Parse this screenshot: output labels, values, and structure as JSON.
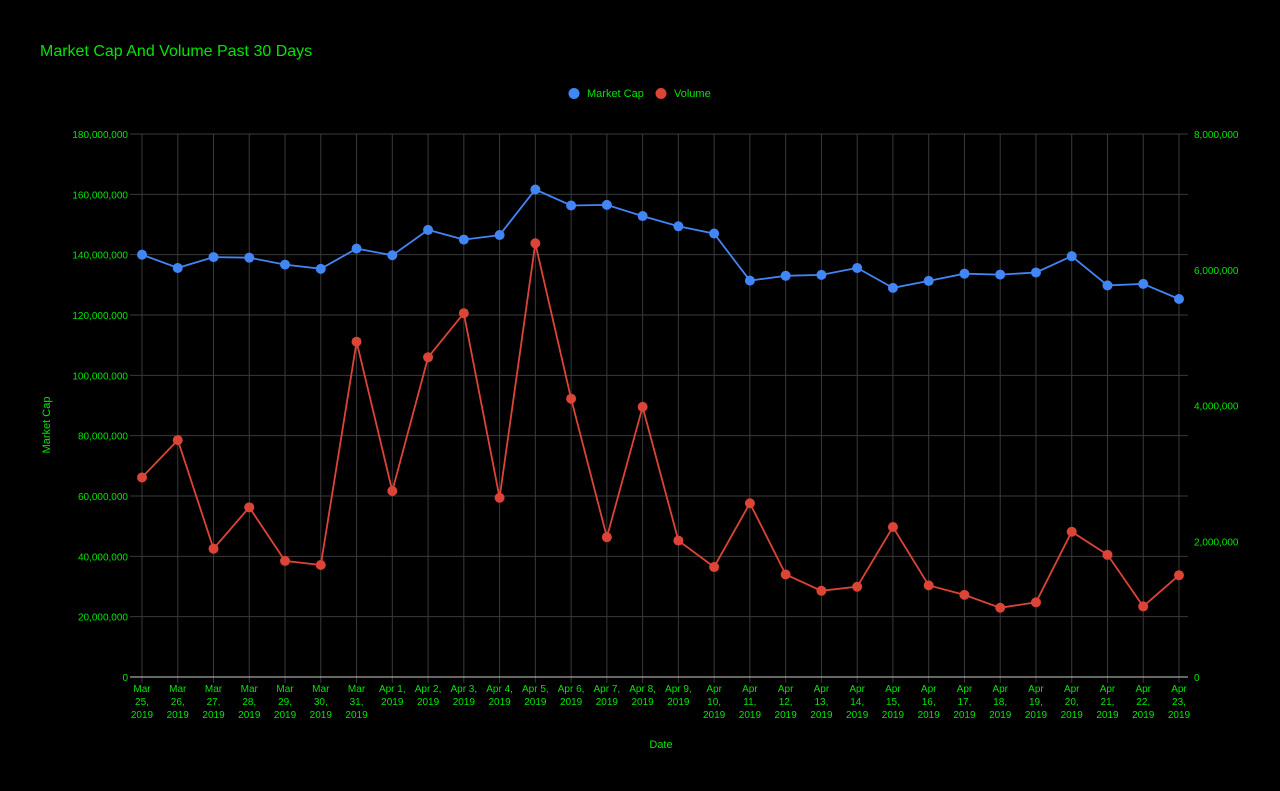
{
  "colors": {
    "background": "#000000",
    "text": "#00e600",
    "grid": "#3a3a3a",
    "baseline": "#cccccc",
    "market_cap": "#4285f4",
    "volume": "#db4437"
  },
  "chart_data": {
    "type": "line",
    "title": "Market Cap And Volume Past 30 Days",
    "xlabel": "Date",
    "ylabel": "Market Cap",
    "y2label": "",
    "legend_position": "top-center",
    "grid": true,
    "categories": [
      "Mar 25, 2019",
      "Mar 26, 2019",
      "Mar 27, 2019",
      "Mar 28, 2019",
      "Mar 29, 2019",
      "Mar 30, 2019",
      "Mar 31, 2019",
      "Apr 1, 2019",
      "Apr 2, 2019",
      "Apr 3, 2019",
      "Apr 4, 2019",
      "Apr 5, 2019",
      "Apr 6, 2019",
      "Apr 7, 2019",
      "Apr 8, 2019",
      "Apr 9, 2019",
      "Apr 10, 2019",
      "Apr 11, 2019",
      "Apr 12, 2019",
      "Apr 13, 2019",
      "Apr 14, 2019",
      "Apr 15, 2019",
      "Apr 16, 2019",
      "Apr 17, 2019",
      "Apr 18, 2019",
      "Apr 19, 2019",
      "Apr 20, 2019",
      "Apr 21, 2019",
      "Apr 22, 2019",
      "Apr 23, 2019"
    ],
    "category_label_lines": [
      [
        "Mar",
        "25,",
        "2019"
      ],
      [
        "Mar",
        "26,",
        "2019"
      ],
      [
        "Mar",
        "27,",
        "2019"
      ],
      [
        "Mar",
        "28,",
        "2019"
      ],
      [
        "Mar",
        "29,",
        "2019"
      ],
      [
        "Mar",
        "30,",
        "2019"
      ],
      [
        "Mar",
        "31,",
        "2019"
      ],
      [
        "Apr 1,",
        "2019"
      ],
      [
        "Apr 2,",
        "2019"
      ],
      [
        "Apr 3,",
        "2019"
      ],
      [
        "Apr 4,",
        "2019"
      ],
      [
        "Apr 5,",
        "2019"
      ],
      [
        "Apr 6,",
        "2019"
      ],
      [
        "Apr 7,",
        "2019"
      ],
      [
        "Apr 8,",
        "2019"
      ],
      [
        "Apr 9,",
        "2019"
      ],
      [
        "Apr",
        "10,",
        "2019"
      ],
      [
        "Apr",
        "11,",
        "2019"
      ],
      [
        "Apr",
        "12,",
        "2019"
      ],
      [
        "Apr",
        "13,",
        "2019"
      ],
      [
        "Apr",
        "14,",
        "2019"
      ],
      [
        "Apr",
        "15,",
        "2019"
      ],
      [
        "Apr",
        "16,",
        "2019"
      ],
      [
        "Apr",
        "17,",
        "2019"
      ],
      [
        "Apr",
        "18,",
        "2019"
      ],
      [
        "Apr",
        "19,",
        "2019"
      ],
      [
        "Apr",
        "20,",
        "2019"
      ],
      [
        "Apr",
        "21,",
        "2019"
      ],
      [
        "Apr",
        "22,",
        "2019"
      ],
      [
        "Apr",
        "23,",
        "2019"
      ]
    ],
    "y_left": {
      "range": [
        0,
        180000000
      ],
      "ticks": [
        0,
        20000000,
        40000000,
        60000000,
        80000000,
        100000000,
        120000000,
        140000000,
        160000000,
        180000000
      ],
      "tick_labels": [
        "0",
        "20,000,000",
        "40,000,000",
        "60,000,000",
        "80,000,000",
        "100,000,000",
        "120,000,000",
        "140,000,000",
        "160,000,000",
        "180,000,000"
      ]
    },
    "y_right": {
      "range": [
        0,
        8000000
      ],
      "ticks": [
        0,
        2000000,
        4000000,
        6000000,
        8000000
      ],
      "tick_labels": [
        "0",
        "2,000,000",
        "4,000,000",
        "6,000,000",
        "8,000,000"
      ]
    },
    "series": [
      {
        "name": "Market Cap",
        "axis": "left",
        "color": "#4285f4",
        "values": [
          140000000,
          135600000,
          139200000,
          139000000,
          136700000,
          135300000,
          142000000,
          139800000,
          148200000,
          145000000,
          146500000,
          161600000,
          156300000,
          156500000,
          152800000,
          149400000,
          147000000,
          131400000,
          133000000,
          133300000,
          135600000,
          129000000,
          131300000,
          133700000,
          133400000,
          134100000,
          139500000,
          129800000,
          130300000,
          125300000
        ]
      },
      {
        "name": "Volume",
        "axis": "right",
        "color": "#db4437",
        "values": [
          2940000,
          3490000,
          1890000,
          2500000,
          1710000,
          1650000,
          4940000,
          2740000,
          4710000,
          5360000,
          2640000,
          6390000,
          4100000,
          2060000,
          3980000,
          2010000,
          1620000,
          2560000,
          1510000,
          1270000,
          1330000,
          2210000,
          1350000,
          1210000,
          1020000,
          1100000,
          2140000,
          1800000,
          1040000,
          1500000
        ]
      }
    ]
  }
}
